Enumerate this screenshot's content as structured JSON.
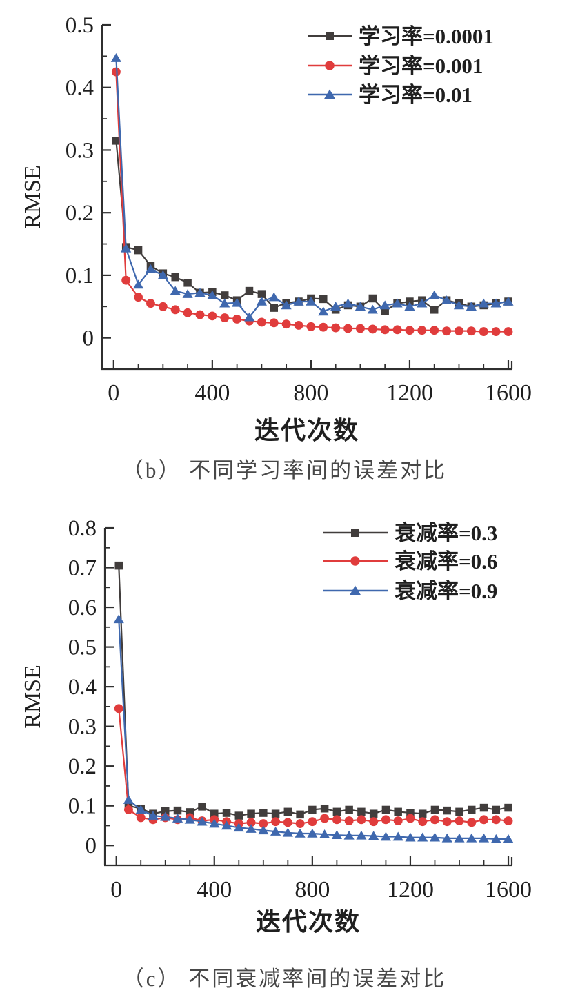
{
  "figure": {
    "background": "#ffffff",
    "axis_color": "#2f2f2f",
    "tick_label_color": "#1f1f1f"
  },
  "chart_data": [
    {
      "type": "line",
      "title": "（b） 不同学习率间的误差对比",
      "xlabel": "迭代次数",
      "ylabel": "RMSE",
      "xlim": [
        0,
        1600
      ],
      "ylim": [
        0,
        0.5
      ],
      "xticks": [
        0,
        400,
        800,
        1200,
        1600
      ],
      "xtick_labels": [
        "0",
        "400",
        "800",
        "1200",
        "1600"
      ],
      "x_minor_step": 100,
      "yticks": [
        0,
        0.1,
        0.2,
        0.3,
        0.4,
        0.5
      ],
      "ytick_labels": [
        "0",
        "0.1",
        "0.2",
        "0.3",
        "0.4",
        "0.5"
      ],
      "y_minor_step": 0.05,
      "grid": false,
      "legend_position": "top-right",
      "x": [
        10,
        50,
        100,
        150,
        200,
        250,
        300,
        350,
        400,
        450,
        500,
        550,
        600,
        650,
        700,
        750,
        800,
        850,
        900,
        950,
        1000,
        1050,
        1100,
        1150,
        1200,
        1250,
        1300,
        1350,
        1400,
        1450,
        1500,
        1550,
        1600
      ],
      "series": [
        {
          "name": "学习率=0.0001",
          "color": "#413d3c",
          "marker": "square",
          "values": [
            0.315,
            0.145,
            0.14,
            0.115,
            0.103,
            0.097,
            0.088,
            0.072,
            0.073,
            0.068,
            0.06,
            0.075,
            0.07,
            0.048,
            0.056,
            0.058,
            0.063,
            0.062,
            0.045,
            0.052,
            0.05,
            0.063,
            0.043,
            0.055,
            0.058,
            0.06,
            0.045,
            0.06,
            0.055,
            0.05,
            0.052,
            0.055,
            0.058
          ]
        },
        {
          "name": "学习率=0.001",
          "color": "#e03c3c",
          "marker": "circle",
          "values": [
            0.425,
            0.092,
            0.065,
            0.055,
            0.05,
            0.045,
            0.04,
            0.037,
            0.035,
            0.032,
            0.03,
            0.027,
            0.025,
            0.024,
            0.022,
            0.02,
            0.018,
            0.017,
            0.016,
            0.015,
            0.015,
            0.014,
            0.013,
            0.013,
            0.012,
            0.012,
            0.012,
            0.011,
            0.011,
            0.011,
            0.01,
            0.01,
            0.01
          ]
        },
        {
          "name": "学习率=0.01",
          "color": "#3f68ae",
          "marker": "triangle",
          "values": [
            0.447,
            0.143,
            0.085,
            0.11,
            0.1,
            0.075,
            0.07,
            0.072,
            0.068,
            0.055,
            0.056,
            0.033,
            0.058,
            0.065,
            0.052,
            0.058,
            0.058,
            0.042,
            0.05,
            0.055,
            0.05,
            0.045,
            0.052,
            0.055,
            0.05,
            0.055,
            0.068,
            0.06,
            0.052,
            0.05,
            0.055,
            0.055,
            0.058
          ]
        }
      ]
    },
    {
      "type": "line",
      "title": "（c） 不同衰减率间的误差对比",
      "xlabel": "迭代次数",
      "ylabel": "RMSE",
      "xlim": [
        0,
        1600
      ],
      "ylim": [
        0,
        0.8
      ],
      "xticks": [
        0,
        400,
        800,
        1200,
        1600
      ],
      "xtick_labels": [
        "0",
        "400",
        "800",
        "1200",
        "1600"
      ],
      "x_minor_step": 100,
      "yticks": [
        0,
        0.1,
        0.2,
        0.3,
        0.4,
        0.5,
        0.6,
        0.7,
        0.8
      ],
      "ytick_labels": [
        "0",
        "0.1",
        "0.2",
        "0.3",
        "0.4",
        "0.5",
        "0.6",
        "0.7",
        "0.8"
      ],
      "y_minor_step": 0.05,
      "grid": false,
      "legend_position": "top-right",
      "x": [
        10,
        50,
        100,
        150,
        200,
        250,
        300,
        350,
        400,
        450,
        500,
        550,
        600,
        650,
        700,
        750,
        800,
        850,
        900,
        950,
        1000,
        1050,
        1100,
        1150,
        1200,
        1250,
        1300,
        1350,
        1400,
        1450,
        1500,
        1550,
        1600
      ],
      "series": [
        {
          "name": "衰减率=0.3",
          "color": "#413d3c",
          "marker": "square",
          "values": [
            0.705,
            0.1,
            0.093,
            0.08,
            0.086,
            0.088,
            0.084,
            0.098,
            0.08,
            0.082,
            0.075,
            0.08,
            0.082,
            0.08,
            0.085,
            0.078,
            0.09,
            0.093,
            0.085,
            0.09,
            0.085,
            0.08,
            0.09,
            0.085,
            0.082,
            0.08,
            0.09,
            0.088,
            0.085,
            0.09,
            0.095,
            0.09,
            0.095
          ]
        },
        {
          "name": "衰减率=0.6",
          "color": "#e03c3c",
          "marker": "circle",
          "values": [
            0.345,
            0.09,
            0.07,
            0.065,
            0.07,
            0.065,
            0.07,
            0.062,
            0.065,
            0.06,
            0.055,
            0.058,
            0.055,
            0.06,
            0.058,
            0.055,
            0.06,
            0.068,
            0.065,
            0.062,
            0.065,
            0.06,
            0.065,
            0.062,
            0.068,
            0.06,
            0.065,
            0.06,
            0.062,
            0.058,
            0.065,
            0.065,
            0.062
          ]
        },
        {
          "name": "衰减率=0.9",
          "color": "#3f68ae",
          "marker": "triangle",
          "values": [
            0.57,
            0.115,
            0.09,
            0.075,
            0.072,
            0.068,
            0.065,
            0.06,
            0.055,
            0.05,
            0.045,
            0.042,
            0.038,
            0.035,
            0.032,
            0.03,
            0.03,
            0.028,
            0.026,
            0.025,
            0.025,
            0.024,
            0.022,
            0.022,
            0.02,
            0.02,
            0.02,
            0.018,
            0.018,
            0.018,
            0.018,
            0.016,
            0.016
          ]
        }
      ]
    }
  ]
}
